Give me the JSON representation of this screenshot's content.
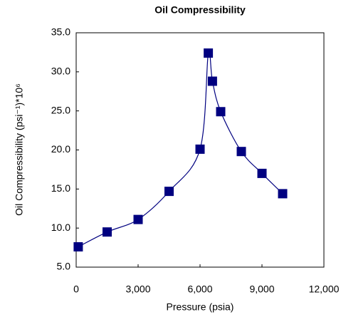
{
  "chart_data": {
    "type": "line",
    "title": "Oil Compressibility",
    "x_label": "Pressure (psia)",
    "y_label": "Oil Compressibility (psi⁻¹)*10⁶",
    "x": [
      100,
      1500,
      3000,
      4500,
      6000,
      6400,
      6600,
      7000,
      8000,
      9000,
      10000
    ],
    "values": [
      7.6,
      9.5,
      11.1,
      14.7,
      20.1,
      32.4,
      28.8,
      24.9,
      19.8,
      17.0,
      14.4
    ],
    "color": "#000080",
    "smooth": true,
    "marker": "square",
    "xlim": [
      0,
      12000
    ],
    "xticks": [
      0,
      {
        "value": 3000,
        "label": "3,000"
      },
      {
        "value": 6000,
        "label": "6,000"
      },
      {
        "value": 9000,
        "label": "9,000"
      },
      {
        "value": 12000,
        "label": "12,000"
      }
    ],
    "ylim": [
      5,
      35
    ],
    "yticks": [
      {
        "value": 5,
        "label": "5.0"
      },
      {
        "value": 10,
        "label": "10.0"
      },
      {
        "value": 15,
        "label": "15.0"
      },
      {
        "value": 20,
        "label": "20.0"
      },
      {
        "value": 25,
        "label": "25.0"
      },
      {
        "value": 30,
        "label": "30.0"
      },
      {
        "value": 35,
        "label": "35.0"
      }
    ],
    "grid": false
  }
}
